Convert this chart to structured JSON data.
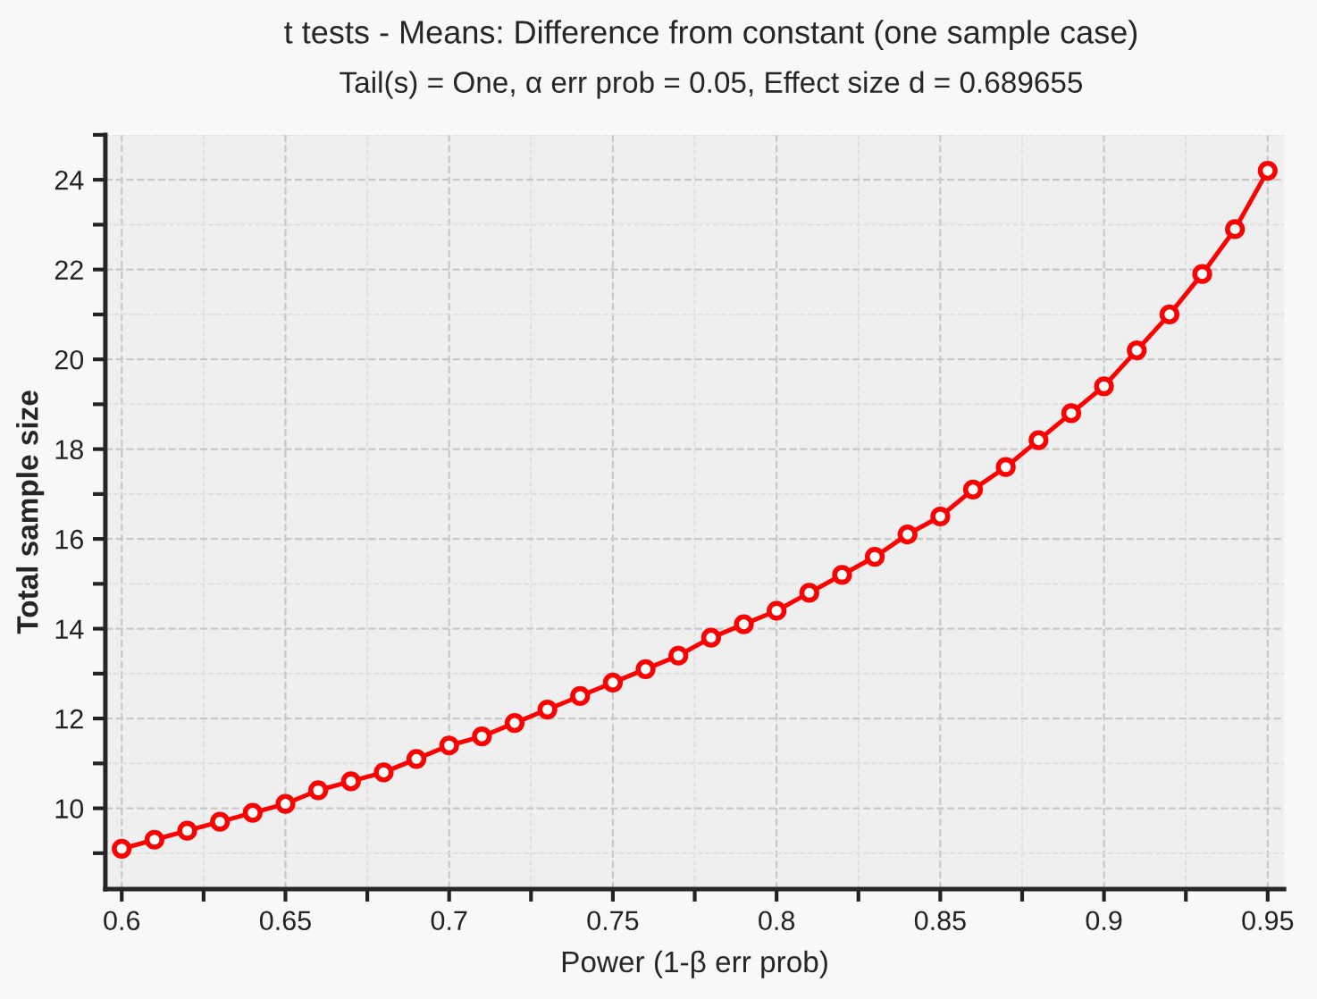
{
  "chart_data": {
    "type": "line",
    "title": "t tests - Means: Difference from constant (one sample case)",
    "subtitle": "Tail(s) = One, α err prob = 0.05, Effect size d = 0.689655",
    "xlabel": "Power (1-β err prob)",
    "ylabel": "Total sample size",
    "x": [
      0.6,
      0.61,
      0.62,
      0.63,
      0.64,
      0.65,
      0.66,
      0.67,
      0.68,
      0.69,
      0.7,
      0.71,
      0.72,
      0.73,
      0.74,
      0.75,
      0.76,
      0.77,
      0.78,
      0.79,
      0.8,
      0.81,
      0.82,
      0.83,
      0.84,
      0.85,
      0.86,
      0.87,
      0.88,
      0.89,
      0.9,
      0.91,
      0.92,
      0.93,
      0.94,
      0.95
    ],
    "series": [
      {
        "color": "#ff0000",
        "values": [
          9.1,
          9.3,
          9.5,
          9.7,
          9.9,
          10.1,
          10.4,
          10.6,
          10.8,
          11.1,
          11.4,
          11.6,
          11.9,
          12.2,
          12.5,
          12.8,
          13.1,
          13.4,
          13.8,
          14.1,
          14.4,
          14.8,
          15.2,
          15.6,
          16.1,
          16.5,
          17.1,
          17.6,
          18.2,
          18.8,
          19.4,
          20.2,
          21.0,
          21.9,
          22.9,
          24.2
        ]
      }
    ],
    "xlim": [
      0.595,
      0.955
    ],
    "ylim": [
      8.2,
      25
    ],
    "xticks": [
      0.6,
      0.65,
      0.7,
      0.75,
      0.8,
      0.85,
      0.9,
      0.95
    ],
    "yticks": [
      10,
      12,
      14,
      16,
      18,
      20,
      22,
      24
    ],
    "grid": true,
    "marker": "circle",
    "line_style": "solid"
  }
}
